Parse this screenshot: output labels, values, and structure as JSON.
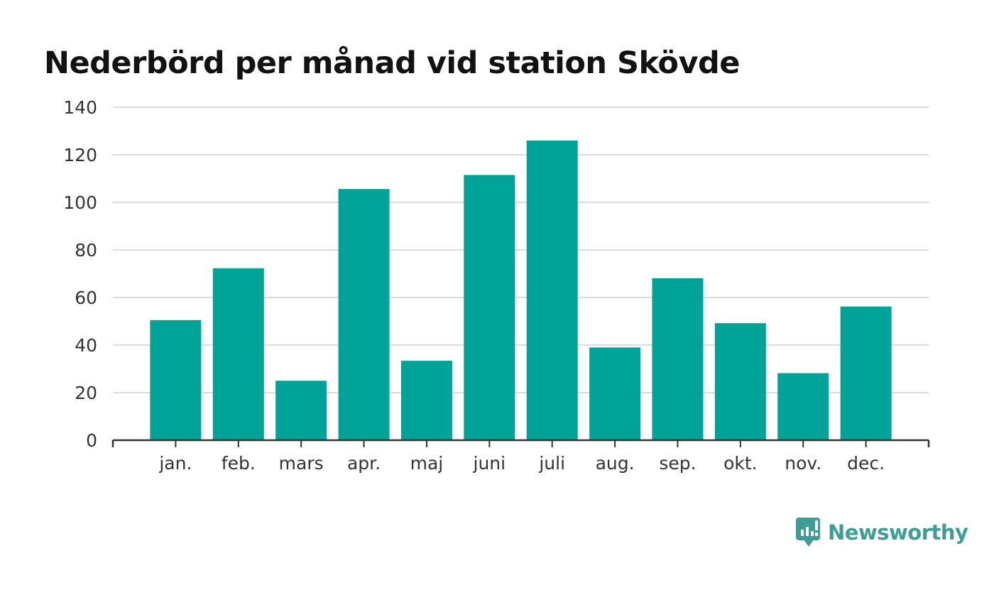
{
  "colors": {
    "bar": "#00a398",
    "grid": "#dcdcdc",
    "axis": "#333333",
    "brand": "#3d9e98"
  },
  "brand": {
    "name": "Newsworthy",
    "icon": "newsworthy-logo-icon"
  },
  "chart_data": {
    "type": "bar",
    "title": "Nederbörd per månad vid station Skövde",
    "xlabel": "",
    "ylabel": "",
    "categories": [
      "jan.",
      "feb.",
      "mars",
      "apr.",
      "maj",
      "juni",
      "juli",
      "aug.",
      "sep.",
      "okt.",
      "nov.",
      "dec."
    ],
    "values": [
      50.5,
      72.3,
      25.0,
      105.6,
      33.4,
      111.5,
      126.0,
      39.0,
      68.1,
      49.2,
      28.2,
      56.2
    ],
    "ylim": [
      0,
      140
    ],
    "yticks": [
      0,
      20,
      40,
      60,
      80,
      100,
      120,
      140
    ],
    "grid": true,
    "legend": "none"
  }
}
